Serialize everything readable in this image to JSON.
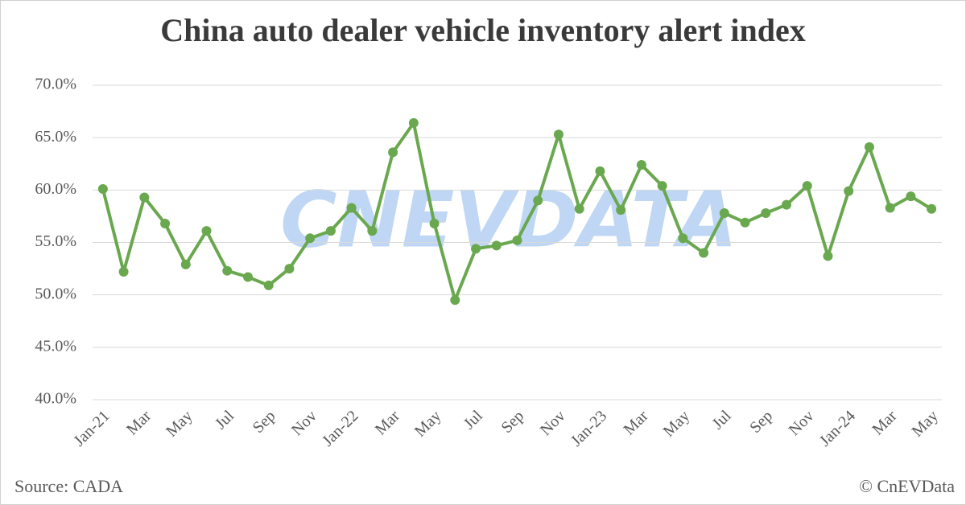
{
  "chart_data": {
    "type": "line",
    "title": "China auto dealer vehicle inventory alert index",
    "watermark": "CNEVDATA",
    "source": "Source: CADA",
    "copyright": "© CnEVData",
    "categories": [
      "Jan-21",
      null,
      "Mar",
      null,
      "May",
      null,
      "Jul",
      null,
      "Sep",
      null,
      "Nov",
      null,
      "Jan-22",
      null,
      "Mar",
      null,
      "May",
      null,
      "Jul",
      null,
      "Sep",
      null,
      "Nov",
      null,
      "Jan-23",
      null,
      "Mar",
      null,
      "May",
      null,
      "Jul",
      null,
      "Sep",
      null,
      "Nov",
      null,
      "Jan-24",
      null,
      "Mar",
      null,
      "May"
    ],
    "series": [
      {
        "name": "Inventory alert index",
        "color": "#6aa84f",
        "values": [
          60.1,
          52.2,
          59.3,
          56.8,
          52.9,
          56.1,
          52.3,
          51.7,
          50.9,
          52.5,
          55.4,
          56.1,
          58.3,
          56.1,
          63.6,
          66.4,
          56.8,
          49.5,
          54.4,
          54.7,
          55.2,
          59.0,
          65.3,
          58.2,
          61.8,
          58.1,
          62.4,
          60.4,
          55.4,
          54.0,
          57.8,
          56.9,
          57.8,
          58.6,
          60.4,
          53.7,
          59.9,
          64.1,
          58.3,
          59.4,
          58.2
        ]
      }
    ],
    "ylim": [
      40,
      70
    ],
    "yticks": [
      {
        "value": 40,
        "label": "40.0%"
      },
      {
        "value": 45,
        "label": "45.0%"
      },
      {
        "value": 50,
        "label": "50.0%"
      },
      {
        "value": 55,
        "label": "55.0%"
      },
      {
        "value": 60,
        "label": "60.0%"
      },
      {
        "value": 65,
        "label": "65.0%"
      },
      {
        "value": 70,
        "label": "70.0%"
      }
    ],
    "grid": true
  }
}
